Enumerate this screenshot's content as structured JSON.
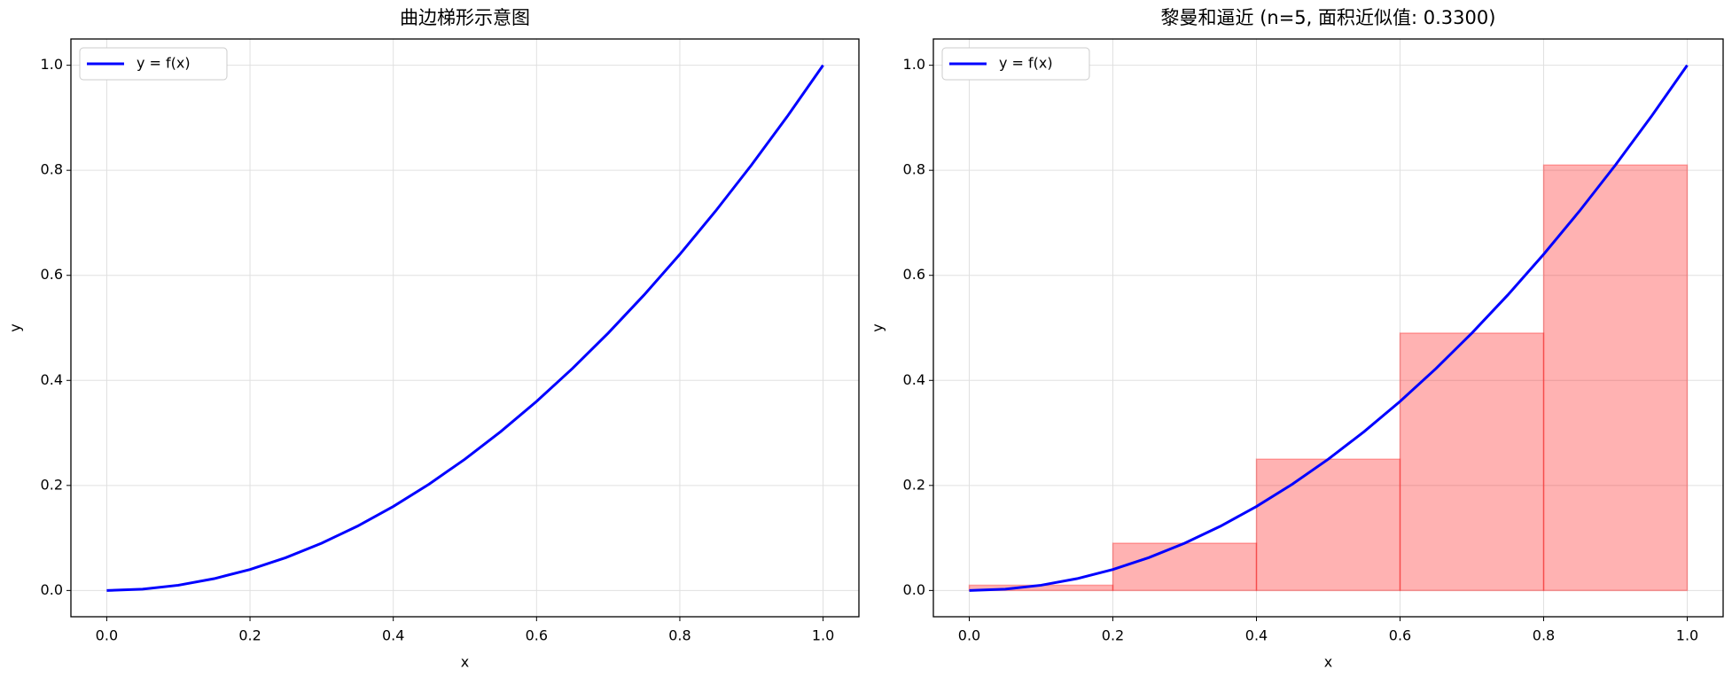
{
  "chart_data": [
    {
      "type": "line",
      "title": "曲边梯形示意图",
      "xlabel": "x",
      "ylabel": "y",
      "x": [
        0,
        0.05,
        0.1,
        0.15,
        0.2,
        0.25,
        0.3,
        0.35,
        0.4,
        0.45,
        0.5,
        0.55,
        0.6,
        0.65,
        0.7,
        0.75,
        0.8,
        0.85,
        0.9,
        0.95,
        1
      ],
      "series": [
        {
          "name": "y = f(x)",
          "color": "#0000ff",
          "values": [
            0,
            0.0025,
            0.01,
            0.0225,
            0.04,
            0.0625,
            0.09,
            0.1225,
            0.16,
            0.2025,
            0.25,
            0.3025,
            0.36,
            0.4225,
            0.49,
            0.5625,
            0.64,
            0.7225,
            0.81,
            0.9025,
            1
          ]
        }
      ],
      "xlim": [
        -0.05,
        1.05
      ],
      "ylim": [
        -0.05,
        1.05
      ],
      "xticks": [
        {
          "value": 0,
          "label": "0.0"
        },
        0.2,
        0.4,
        0.6,
        0.8,
        {
          "value": 1,
          "label": "1.0"
        }
      ],
      "yticks": [
        {
          "value": 0,
          "label": "0.0"
        },
        0.2,
        0.4,
        0.6,
        0.8,
        {
          "value": 1,
          "label": "1.0"
        }
      ],
      "grid": true,
      "legend": "upper left"
    },
    {
      "type": "line",
      "title": "黎曼和逼近 (n=5, 面积近似值: 0.3300)",
      "xlabel": "x",
      "ylabel": "y",
      "x": [
        0,
        0.05,
        0.1,
        0.15,
        0.2,
        0.25,
        0.3,
        0.35,
        0.4,
        0.45,
        0.5,
        0.55,
        0.6,
        0.65,
        0.7,
        0.75,
        0.8,
        0.85,
        0.9,
        0.95,
        1
      ],
      "series": [
        {
          "name": "y = f(x)",
          "color": "#0000ff",
          "values": [
            0,
            0.0025,
            0.01,
            0.0225,
            0.04,
            0.0625,
            0.09,
            0.1225,
            0.16,
            0.2025,
            0.25,
            0.3025,
            0.36,
            0.4225,
            0.49,
            0.5625,
            0.64,
            0.7225,
            0.81,
            0.9025,
            1
          ]
        }
      ],
      "bars": {
        "bins": [
          0,
          0.2,
          0.4,
          0.6,
          0.8,
          1
        ],
        "values": [
          0.01,
          0.09,
          0.25,
          0.49,
          0.81
        ],
        "color": "#ff0000"
      },
      "xlim": [
        -0.05,
        1.05
      ],
      "ylim": [
        -0.05,
        1.05
      ],
      "xticks": [
        {
          "value": 0,
          "label": "0.0"
        },
        0.2,
        0.4,
        0.6,
        0.8,
        {
          "value": 1,
          "label": "1.0"
        }
      ],
      "yticks": [
        {
          "value": 0,
          "label": "0.0"
        },
        0.2,
        0.4,
        0.6,
        0.8,
        {
          "value": 1,
          "label": "1.0"
        }
      ],
      "grid": true,
      "legend": "upper left"
    }
  ]
}
